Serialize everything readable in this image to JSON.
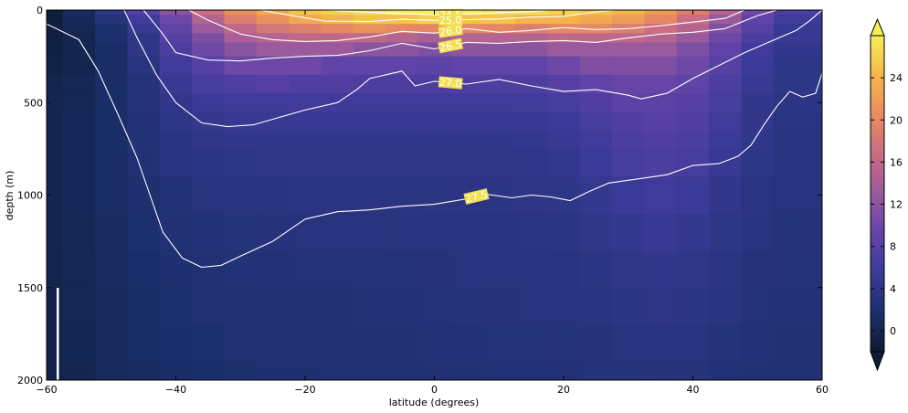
{
  "chart_data": {
    "type": "heatmap",
    "title": "",
    "xlabel": "latitude (degrees)",
    "ylabel": "depth (m)",
    "xlim": [
      -60,
      60
    ],
    "ylim": [
      2000,
      0
    ],
    "xticks": [
      "-60",
      "-40",
      "-20",
      "0",
      "20",
      "40",
      "60"
    ],
    "yticks": [
      "0",
      "500",
      "1000",
      "1500",
      "2000"
    ],
    "colorbar": {
      "range": [
        -2,
        28
      ],
      "extend": "both",
      "ticks": [
        "0",
        "4",
        "8",
        "12",
        "16",
        "20",
        "24"
      ],
      "colors": [
        "#0d1b33",
        "#1a2f6a",
        "#3b3a98",
        "#6344a8",
        "#9a5a9c",
        "#c96c84",
        "#e98c5e",
        "#f4b84a",
        "#f3ef55"
      ]
    },
    "heatmap": {
      "x": [
        -60,
        -55,
        -50,
        -45,
        -40,
        -35,
        -30,
        -25,
        -20,
        -15,
        -10,
        -5,
        0,
        5,
        10,
        15,
        20,
        25,
        30,
        35,
        40,
        45,
        50,
        55,
        60
      ],
      "depth": [
        0,
        50,
        100,
        150,
        200,
        300,
        400,
        500,
        600,
        700,
        800,
        1000,
        1200,
        1400,
        1600,
        1800,
        2000
      ],
      "values": [
        [
          -1.5,
          1,
          4,
          8,
          12,
          17,
          21,
          23,
          25,
          26,
          27,
          28,
          28,
          28,
          27,
          27,
          26,
          25,
          24,
          22,
          19,
          15,
          10,
          7,
          7
        ],
        [
          -1.5,
          0.5,
          3,
          6,
          10,
          15,
          19,
          21,
          23,
          24,
          25,
          25,
          26,
          25,
          25,
          24,
          24,
          23,
          22,
          20,
          17,
          13,
          9,
          6,
          6
        ],
        [
          -1.2,
          0.2,
          2,
          5,
          9,
          13,
          16,
          18,
          19,
          20,
          21,
          20,
          20,
          20,
          20,
          19,
          20,
          20,
          19,
          17,
          15,
          11,
          8,
          5,
          5
        ],
        [
          -1,
          0,
          2,
          4,
          8,
          11,
          14,
          15,
          16,
          16,
          16,
          15,
          14,
          15,
          15,
          15,
          16,
          16,
          16,
          15,
          13,
          10,
          7,
          5,
          5
        ],
        [
          -0.8,
          0,
          1.5,
          4,
          7,
          10,
          12,
          13,
          13,
          13,
          12,
          12,
          11,
          12,
          12,
          12,
          13,
          13,
          13,
          13,
          11,
          9,
          6,
          4.5,
          4.5
        ],
        [
          -0.5,
          0,
          1.5,
          3.5,
          6,
          8,
          10,
          10,
          10,
          9,
          9,
          9,
          8.5,
          9,
          9,
          9,
          10,
          11,
          11,
          11,
          10,
          8,
          5.5,
          4,
          4
        ],
        [
          -0.2,
          0.2,
          1.5,
          3,
          5,
          6.5,
          7.5,
          8,
          7.5,
          7.5,
          7,
          7,
          7,
          7,
          7,
          7,
          8,
          9,
          9.5,
          9.5,
          9,
          7,
          5,
          4,
          4
        ],
        [
          0,
          0.3,
          1.5,
          3,
          4.5,
          5.5,
          6,
          6,
          6,
          6,
          6,
          6,
          6,
          6,
          6,
          6,
          6.5,
          7.5,
          8.5,
          8.5,
          8,
          6.5,
          4.5,
          3.8,
          3.8
        ],
        [
          0,
          0.5,
          1.5,
          2.8,
          4,
          4.8,
          5,
          5,
          5,
          5,
          5,
          5,
          5,
          5,
          5,
          5.2,
          5.5,
          6.5,
          7.5,
          8,
          7.5,
          6,
          4.5,
          3.6,
          3.6
        ],
        [
          0,
          0.5,
          1.5,
          2.7,
          3.5,
          4.2,
          4.5,
          4.5,
          4.5,
          4.5,
          4.5,
          4.5,
          4.5,
          4.5,
          4.5,
          4.6,
          5,
          6,
          7,
          7.5,
          7,
          5.5,
          4.2,
          3.5,
          3.5
        ],
        [
          0,
          0.5,
          1.5,
          2.5,
          3.2,
          3.8,
          4,
          4.2,
          4.2,
          4.2,
          4.2,
          4.2,
          4.2,
          4.2,
          4.2,
          4.3,
          4.6,
          5.5,
          6.5,
          7,
          6.5,
          5.2,
          4,
          3.4,
          3.4
        ],
        [
          0,
          0.5,
          1.3,
          2.2,
          2.8,
          3.2,
          3.4,
          3.5,
          3.6,
          3.6,
          3.6,
          3.6,
          3.7,
          3.8,
          3.8,
          3.9,
          4,
          4.8,
          5.5,
          6,
          5.5,
          4.5,
          3.6,
          3.2,
          3.2
        ],
        [
          0,
          0.4,
          1.2,
          2,
          2.5,
          2.8,
          3,
          3.1,
          3.2,
          3.2,
          3.2,
          3.3,
          3.4,
          3.5,
          3.5,
          3.6,
          3.7,
          4.2,
          4.8,
          5.2,
          4.8,
          4,
          3.4,
          3,
          3
        ],
        [
          -0.2,
          0.3,
          1,
          1.7,
          2.2,
          2.5,
          2.7,
          2.8,
          2.9,
          2.9,
          2.9,
          3,
          3.1,
          3.2,
          3.3,
          3.4,
          3.4,
          3.8,
          4.2,
          4.5,
          4.2,
          3.6,
          3.1,
          2.9,
          2.9
        ],
        [
          -0.3,
          0.2,
          0.8,
          1.5,
          2,
          2.3,
          2.5,
          2.6,
          2.6,
          2.6,
          2.7,
          2.8,
          2.9,
          3,
          3.1,
          3.2,
          3.2,
          3.4,
          3.7,
          3.9,
          3.7,
          3.3,
          2.9,
          2.8,
          2.8
        ],
        [
          -0.4,
          0.1,
          0.7,
          1.3,
          1.8,
          2.1,
          2.3,
          2.4,
          2.4,
          2.5,
          2.5,
          2.6,
          2.7,
          2.8,
          2.9,
          3,
          3,
          3.1,
          3.3,
          3.4,
          3.3,
          3,
          2.7,
          2.6,
          2.6
        ],
        [
          -0.5,
          0,
          0.6,
          1.2,
          1.6,
          1.9,
          2.1,
          2.2,
          2.2,
          2.3,
          2.3,
          2.4,
          2.5,
          2.6,
          2.7,
          2.8,
          2.8,
          2.9,
          3,
          3.1,
          3,
          2.8,
          2.6,
          2.5,
          2.5
        ]
      ]
    },
    "contours": [
      {
        "level": "24.5",
        "points": [
          [
            -17,
            0
          ],
          [
            -10,
            12
          ],
          [
            -5,
            20
          ],
          [
            0,
            25
          ],
          [
            5,
            22
          ],
          [
            10,
            14
          ],
          [
            15,
            8
          ],
          [
            18,
            0
          ]
        ]
      },
      {
        "level": "25.0",
        "points": [
          [
            -27,
            0
          ],
          [
            -22,
            30
          ],
          [
            -17,
            60
          ],
          [
            -10,
            62
          ],
          [
            -5,
            50
          ],
          [
            0,
            56
          ],
          [
            5,
            52
          ],
          [
            10,
            48
          ],
          [
            15,
            38
          ],
          [
            20,
            35
          ],
          [
            25,
            10
          ],
          [
            28,
            0
          ]
        ]
      },
      {
        "level": "26.0",
        "points": [
          [
            -38,
            0
          ],
          [
            -35,
            55
          ],
          [
            -30,
            130
          ],
          [
            -25,
            160
          ],
          [
            -20,
            170
          ],
          [
            -15,
            165
          ],
          [
            -10,
            145
          ],
          [
            -5,
            115
          ],
          [
            0,
            125
          ],
          [
            5,
            100
          ],
          [
            10,
            120
          ],
          [
            15,
            110
          ],
          [
            20,
            95
          ],
          [
            25,
            105
          ],
          [
            30,
            100
          ],
          [
            35,
            85
          ],
          [
            40,
            65
          ],
          [
            45,
            45
          ],
          [
            48,
            0
          ]
        ]
      },
      {
        "level": "26.5",
        "points": [
          [
            -45,
            0
          ],
          [
            -42,
            130
          ],
          [
            -40,
            230
          ],
          [
            -35,
            270
          ],
          [
            -30,
            275
          ],
          [
            -25,
            260
          ],
          [
            -20,
            250
          ],
          [
            -15,
            245
          ],
          [
            -10,
            220
          ],
          [
            -5,
            180
          ],
          [
            0,
            210
          ],
          [
            5,
            175
          ],
          [
            10,
            180
          ],
          [
            15,
            170
          ],
          [
            20,
            165
          ],
          [
            25,
            175
          ],
          [
            30,
            150
          ],
          [
            35,
            130
          ],
          [
            40,
            120
          ],
          [
            45,
            100
          ],
          [
            50,
            30
          ],
          [
            53,
            0
          ]
        ]
      },
      {
        "level": "27.0",
        "points": [
          [
            -48,
            0
          ],
          [
            -46,
            150
          ],
          [
            -43,
            350
          ],
          [
            -40,
            500
          ],
          [
            -36,
            610
          ],
          [
            -32,
            630
          ],
          [
            -28,
            620
          ],
          [
            -25,
            590
          ],
          [
            -20,
            540
          ],
          [
            -15,
            500
          ],
          [
            -12,
            430
          ],
          [
            -10,
            370
          ],
          [
            -5,
            330
          ],
          [
            -3,
            410
          ],
          [
            0,
            385
          ],
          [
            5,
            400
          ],
          [
            10,
            375
          ],
          [
            15,
            410
          ],
          [
            20,
            440
          ],
          [
            25,
            430
          ],
          [
            30,
            460
          ],
          [
            32,
            480
          ],
          [
            36,
            450
          ],
          [
            40,
            370
          ],
          [
            44,
            300
          ],
          [
            48,
            230
          ],
          [
            52,
            170
          ],
          [
            56,
            110
          ],
          [
            58,
            60
          ],
          [
            60,
            0
          ]
        ]
      },
      {
        "level": "27.5",
        "points": [
          [
            -60,
            75
          ],
          [
            -55,
            160
          ],
          [
            -52,
            330
          ],
          [
            -49,
            560
          ],
          [
            -46,
            800
          ],
          [
            -44,
            1000
          ],
          [
            -42,
            1200
          ],
          [
            -39,
            1340
          ],
          [
            -36,
            1390
          ],
          [
            -33,
            1380
          ],
          [
            -30,
            1330
          ],
          [
            -25,
            1250
          ],
          [
            -20,
            1130
          ],
          [
            -15,
            1090
          ],
          [
            -10,
            1080
          ],
          [
            -5,
            1060
          ],
          [
            0,
            1050
          ],
          [
            5,
            1020
          ],
          [
            8,
            995
          ],
          [
            12,
            1015
          ],
          [
            15,
            1000
          ],
          [
            18,
            1010
          ],
          [
            21,
            1030
          ],
          [
            24,
            980
          ],
          [
            27,
            935
          ],
          [
            32,
            910
          ],
          [
            36,
            890
          ],
          [
            40,
            840
          ],
          [
            44,
            830
          ],
          [
            47,
            790
          ],
          [
            49,
            730
          ],
          [
            51,
            620
          ],
          [
            53,
            520
          ],
          [
            55,
            440
          ],
          [
            57,
            470
          ],
          [
            59,
            450
          ],
          [
            60,
            340
          ]
        ]
      }
    ]
  }
}
